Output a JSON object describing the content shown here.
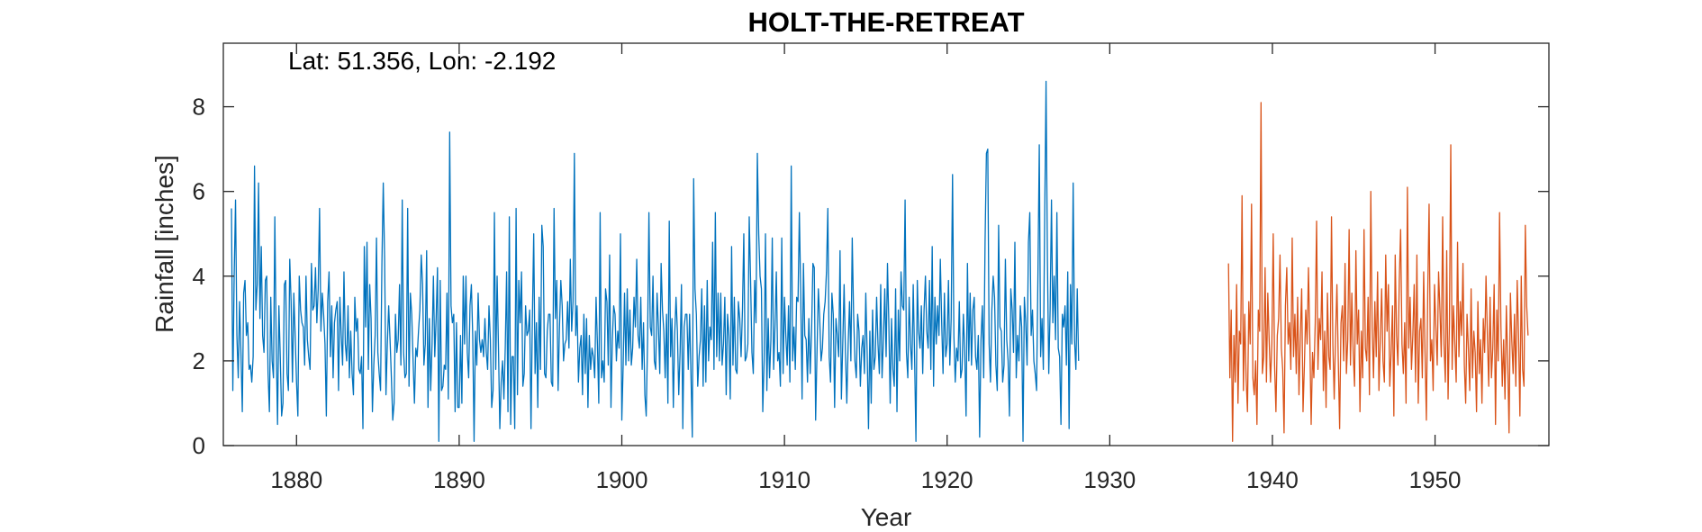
{
  "chart_data": {
    "type": "line",
    "title": "HOLT-THE-RETREAT",
    "xlabel": "Year",
    "ylabel": "Rainfall [inches]",
    "annotation": "Lat: 51.356, Lon: -2.192",
    "xlim": [
      1875.5,
      1957
    ],
    "ylim": [
      0,
      9.5
    ],
    "xticks": [
      1880,
      1890,
      1900,
      1910,
      1920,
      1930,
      1940,
      1950
    ],
    "yticks": [
      0,
      2,
      4,
      6,
      8
    ],
    "grid": false,
    "legend": false,
    "series": [
      {
        "color": "#0072bd",
        "x_start": 1876,
        "x_step": 0.0833333,
        "values": [
          5.6,
          1.3,
          4.0,
          5.8,
          2.6,
          1.6,
          3.4,
          2.2,
          0.8,
          3.6,
          3.9,
          2.6,
          2.9,
          1.8,
          1.9,
          1.5,
          2.1,
          6.6,
          3.2,
          3.8,
          6.2,
          3.0,
          4.7,
          2.6,
          2.2,
          3.9,
          4.0,
          1.7,
          0.8,
          3.5,
          2.0,
          1.6,
          5.4,
          2.4,
          0.5,
          3.3,
          2.1,
          0.7,
          1.0,
          3.8,
          3.9,
          1.7,
          1.3,
          4.4,
          3.4,
          1.5,
          3.6,
          2.6,
          1.5,
          0.7,
          4.0,
          3.2,
          2.9,
          2.8,
          1.9,
          4.0,
          2.5,
          2.1,
          1.8,
          4.3,
          3.2,
          3.3,
          4.2,
          2.9,
          3.7,
          5.6,
          2.7,
          3.6,
          3.1,
          2.4,
          0.7,
          3.4,
          4.1,
          2.1,
          3.3,
          1.6,
          2.9,
          3.2,
          3.4,
          1.3,
          3.5,
          2.6,
          1.9,
          4.1,
          2.4,
          2.0,
          3.3,
          1.6,
          2.7,
          1.7,
          1.2,
          3.5,
          2.7,
          3.0,
          1.8,
          1.7,
          2.1,
          0.4,
          4.7,
          2.8,
          4.8,
          1.8,
          3.8,
          3.0,
          0.8,
          1.9,
          2.6,
          4.9,
          2.2,
          1.7,
          1.3,
          4.3,
          6.2,
          4.4,
          1.2,
          2.4,
          3.3,
          2.5,
          1.6,
          0.6,
          1.0,
          3.1,
          2.2,
          2.5,
          3.8,
          1.9,
          5.8,
          2.2,
          1.6,
          1.7,
          5.6,
          1.4,
          3.6,
          3.1,
          2.0,
          1.0,
          2.3,
          2.1,
          2.7,
          3.2,
          4.5,
          3.8,
          1.9,
          2.4,
          4.6,
          0.9,
          3.0,
          1.3,
          2.4,
          4.0,
          2.1,
          3.0,
          4.2,
          0.1,
          3.9,
          1.3,
          1.4,
          1.9,
          1.8,
          3.6,
          1.1,
          7.4,
          3.3,
          2.9,
          3.1,
          0.8,
          2.9,
          0.9,
          0.9,
          2.6,
          1.0,
          4.0,
          2.4,
          4.0,
          2.2,
          1.6,
          3.3,
          3.8,
          2.6,
          0.1,
          2.7,
          1.9,
          3.6,
          2.5,
          2.2,
          2.5,
          2.1,
          3.0,
          2.2,
          1.8,
          3.3,
          2.5,
          0.9,
          1.3,
          5.5,
          1.8,
          4.0,
          2.3,
          0.4,
          1.5,
          2.0,
          1.1,
          2.3,
          4.1,
          0.8,
          5.4,
          0.5,
          2.1,
          2.1,
          0.4,
          5.6,
          1.2,
          3.9,
          2.9,
          4.1,
          1.4,
          1.7,
          3.3,
          2.6,
          2.7,
          3.2,
          0.4,
          3.0,
          5.0,
          1.7,
          2.9,
          0.9,
          3.5,
          1.8,
          5.2,
          4.7,
          1.7,
          1.6,
          2.7,
          3.1,
          3.1,
          1.5,
          1.4,
          5.6,
          3.0,
          3.9,
          1.3,
          2.8,
          3.9,
          3.3,
          2.0,
          2.4,
          2.5,
          3.4,
          2.3,
          4.4,
          2.7,
          3.4,
          6.9,
          2.6,
          3.3,
          1.5,
          2.3,
          2.6,
          1.2,
          3.1,
          1.7,
          3.0,
          0.9,
          2.6,
          1.8,
          2.3,
          2.1,
          1.6,
          3.5,
          2.4,
          1.0,
          5.5,
          1.6,
          2.0,
          1.5,
          3.7,
          3.4,
          1.9,
          4.5,
          0.9,
          2.5,
          3.3,
          3.1,
          2.0,
          2.7,
          2.3,
          5.0,
          0.6,
          1.9,
          3.6,
          1.9,
          3.7,
          2.0,
          3.2,
          1.9,
          2.3,
          3.5,
          2.8,
          4.4,
          2.6,
          2.3,
          3.5,
          1.8,
          2.9,
          1.2,
          0.7,
          2.5,
          5.5,
          2.8,
          2.6,
          4.0,
          2.0,
          1.8,
          3.6,
          2.8,
          1.7,
          4.3,
          3.2,
          2.7,
          1.6,
          3.1,
          1.0,
          5.3,
          2.1,
          3.0,
          0.9,
          2.6,
          3.5,
          2.7,
          1.2,
          2.2,
          3.8,
          0.4,
          2.8,
          3.1,
          3.1,
          1.8,
          3.1,
          1.7,
          0.2,
          6.3,
          3.7,
          3.1,
          1.4,
          2.1,
          2.5,
          3.7,
          1.4,
          3.3,
          1.5,
          3.9,
          2.0,
          2.8,
          2.5,
          4.8,
          1.8,
          5.5,
          2.1,
          3.6,
          2.0,
          3.6,
          1.9,
          2.4,
          3.5,
          1.2,
          3.1,
          2.6,
          1.1,
          4.7,
          1.9,
          3.5,
          1.8,
          1.7,
          3.4,
          3.0,
          2.1,
          3.2,
          5.0,
          2.0,
          2.1,
          2.4,
          5.4,
          3.9,
          2.2,
          1.7,
          3.9,
          2.9,
          6.9,
          5.0,
          4.0,
          3.7,
          0.8,
          2.0,
          5.0,
          1.3,
          3.0,
          1.6,
          2.5,
          4.9,
          1.8,
          2.8,
          4.1,
          2.0,
          2.2,
          1.4,
          4.9,
          1.7,
          3.5,
          2.6,
          1.9,
          3.3,
          1.5,
          6.6,
          2.0,
          2.8,
          1.8,
          3.5,
          3.4,
          5.5,
          3.6,
          1.1,
          4.3,
          2.6,
          2.5,
          1.5,
          3.0,
          1.7,
          2.7,
          4.3,
          4.2,
          0.6,
          2.2,
          3.7,
          3.0,
          2.0,
          2.3,
          3.1,
          3.4,
          4.1,
          5.6,
          2.1,
          1.5,
          3.6,
          3.1,
          0.9,
          3.0,
          2.6,
          2.1,
          4.6,
          1.1,
          2.4,
          3.8,
          2.2,
          1.0,
          2.4,
          3.4,
          2.0,
          4.9,
          3.1,
          2.0,
          1.6,
          3.1,
          2.7,
          1.4,
          2.3,
          2.6,
          1.7,
          3.6,
          2.2,
          0.4,
          2.7,
          1.0,
          3.2,
          1.8,
          2.1,
          3.5,
          2.4,
          1.7,
          3.8,
          1.6,
          2.5,
          3.7,
          2.1,
          4.3,
          2.9,
          1.0,
          3.0,
          1.8,
          1.4,
          3.7,
          0.8,
          3.2,
          2.0,
          4.1,
          3.3,
          3.2,
          5.8,
          2.2,
          1.6,
          3.5,
          2.4,
          1.8,
          3.8,
          2.1,
          0.1,
          3.9,
          2.7,
          2.3,
          3.3,
          1.7,
          3.2,
          4.0,
          2.7,
          2.3,
          3.9,
          1.8,
          4.7,
          1.4,
          3.5,
          2.4,
          3.3,
          2.6,
          4.4,
          2.9,
          1.7,
          3.6,
          2.1,
          2.4,
          3.9,
          1.9,
          3.0,
          6.4,
          2.6,
          1.5,
          2.3,
          2.0,
          3.4,
          1.6,
          1.8,
          3.1,
          2.2,
          0.7,
          4.3,
          2.0,
          3.6,
          1.9,
          3.2,
          3.5,
          2.1,
          1.8,
          2.6,
          0.2,
          2.5,
          3.3,
          1.6,
          4.8,
          6.9,
          7.0,
          2.4,
          1.5,
          3.2,
          4.0,
          3.5,
          1.9,
          1.3,
          5.2,
          2.8,
          2.7,
          1.5,
          1.9,
          4.4,
          2.5,
          2.0,
          0.7,
          3.7,
          3.2,
          2.2,
          4.8,
          1.6,
          2.6,
          2.0,
          3.3,
          2.8,
          0.1,
          3.5,
          2.9,
          1.9,
          4.8,
          5.5,
          2.6,
          3.2,
          2.0,
          1.7,
          1.3,
          4.0,
          7.1,
          2.1,
          3.0,
          1.8,
          5.4,
          8.6,
          4.4,
          1.7,
          3.2,
          5.8,
          2.9,
          4.0,
          2.5,
          5.5,
          2.3,
          2.1,
          0.5,
          3.1,
          2.8,
          3.3,
          1.9,
          4.1,
          0.4,
          3.8,
          2.4,
          6.2,
          2.5,
          1.8,
          3.7,
          2.0
        ]
      },
      {
        "color": "#d95319",
        "x_start": 1937.3,
        "x_step": 0.0833333,
        "values": [
          4.3,
          1.6,
          3.2,
          0.1,
          2.6,
          1.5,
          3.8,
          1.0,
          2.7,
          2.4,
          5.9,
          1.3,
          3.1,
          1.6,
          0.8,
          3.4,
          2.4,
          5.7,
          1.6,
          1.2,
          2.0,
          0.5,
          3.2,
          2.7,
          8.1,
          1.7,
          2.1,
          4.2,
          1.5,
          3.6,
          2.5,
          1.5,
          2.4,
          5.0,
          1.9,
          0.8,
          2.6,
          3.0,
          4.5,
          2.3,
          1.8,
          0.3,
          3.3,
          4.2,
          2.4,
          2.9,
          1.8,
          4.9,
          2.1,
          3.1,
          1.7,
          3.5,
          1.2,
          2.6,
          3.7,
          0.8,
          1.9,
          3.2,
          2.4,
          4.2,
          2.5,
          0.5,
          2.2,
          1.6,
          2.9,
          5.3,
          1.8,
          3.0,
          2.5,
          4.1,
          1.3,
          2.7,
          0.9,
          3.6,
          2.1,
          1.8,
          5.4,
          2.4,
          1.1,
          2.6,
          3.8,
          2.0,
          0.4,
          2.9,
          3.3,
          2.0,
          4.3,
          1.7,
          2.5,
          5.1,
          1.9,
          3.6,
          2.2,
          1.4,
          4.6,
          2.4,
          3.2,
          0.8,
          2.7,
          1.6,
          5.1,
          2.3,
          2.0,
          3.5,
          1.2,
          6.0,
          2.8,
          1.6,
          3.4,
          2.1,
          4.1,
          1.3,
          2.5,
          3.7,
          2.0,
          1.5,
          4.5,
          2.7,
          3.8,
          1.4,
          2.2,
          3.3,
          0.7,
          4.5,
          2.6,
          1.9,
          3.9,
          5.1,
          2.4,
          1.7,
          2.9,
          1.0,
          6.1,
          2.3,
          3.5,
          1.8,
          2.6,
          3.8,
          1.5,
          4.5,
          1.0,
          2.7,
          3.0,
          1.6,
          4.1,
          2.2,
          0.6,
          3.6,
          5.7,
          2.0,
          2.5,
          1.3,
          3.8,
          2.8,
          1.9,
          4.1,
          3.2,
          2.1,
          5.4,
          2.4,
          1.5,
          4.6,
          1.1,
          2.9,
          7.1,
          1.8,
          3.3,
          2.4,
          1.5,
          4.8,
          2.1,
          3.4,
          2.6,
          4.3,
          1.9,
          1.0,
          3.1,
          2.3,
          1.3,
          3.7,
          1.6,
          2.7,
          2.2,
          0.8,
          3.4,
          1.7,
          2.5,
          1.0,
          3.0,
          2.2,
          4.0,
          2.6,
          1.4,
          3.5,
          1.6,
          2.3,
          3.8,
          0.5,
          3.2,
          2.0,
          5.5,
          2.8,
          1.4,
          2.5,
          1.1,
          3.3,
          2.0,
          0.3,
          3.6,
          2.5,
          1.7,
          3.1,
          1.4,
          3.9,
          2.6,
          0.7,
          4.0,
          1.8,
          1.4,
          5.2,
          3.3,
          2.6
        ]
      }
    ]
  }
}
